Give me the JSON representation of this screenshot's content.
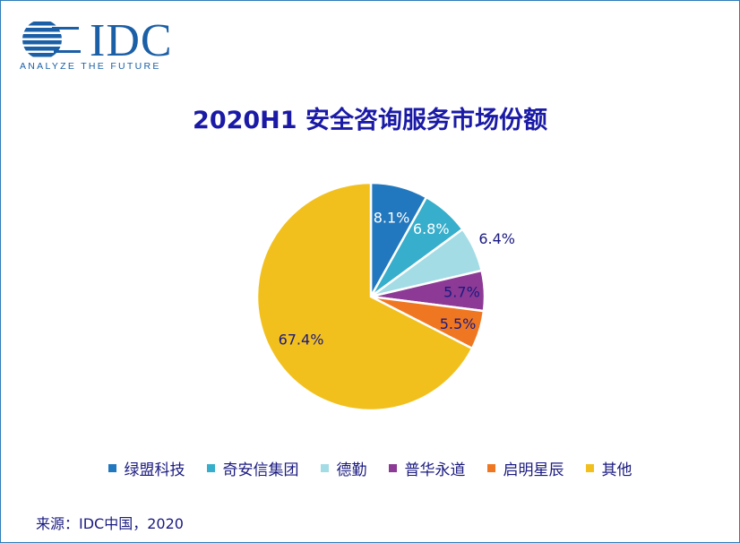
{
  "header": {
    "logo_text": "IDC",
    "logo_tagline": "ANALYZE THE FUTURE"
  },
  "chart_data": {
    "type": "pie",
    "title": "2020H1 安全咨询服务市场份额",
    "categories": [
      "绿盟科技",
      "奇安信集团",
      "德勤",
      "普华永道",
      "启明星辰",
      "其他"
    ],
    "values": [
      8.1,
      6.8,
      6.4,
      5.7,
      5.5,
      67.4
    ],
    "labels": [
      "8.1%",
      "6.8%",
      "6.4%",
      "5.7%",
      "5.5%",
      "67.4%"
    ],
    "colors": [
      "#2278BE",
      "#37AECB",
      "#A4DCE6",
      "#8C3A95",
      "#F07722",
      "#F2C01D"
    ],
    "label_colors": [
      "#ffffff",
      "#ffffff",
      "#1A1A80",
      "#1A1A80",
      "#1A1A80",
      "#1A1A80"
    ],
    "legend_position": "bottom"
  },
  "footer": {
    "source": "来源：IDC中国，2020"
  }
}
